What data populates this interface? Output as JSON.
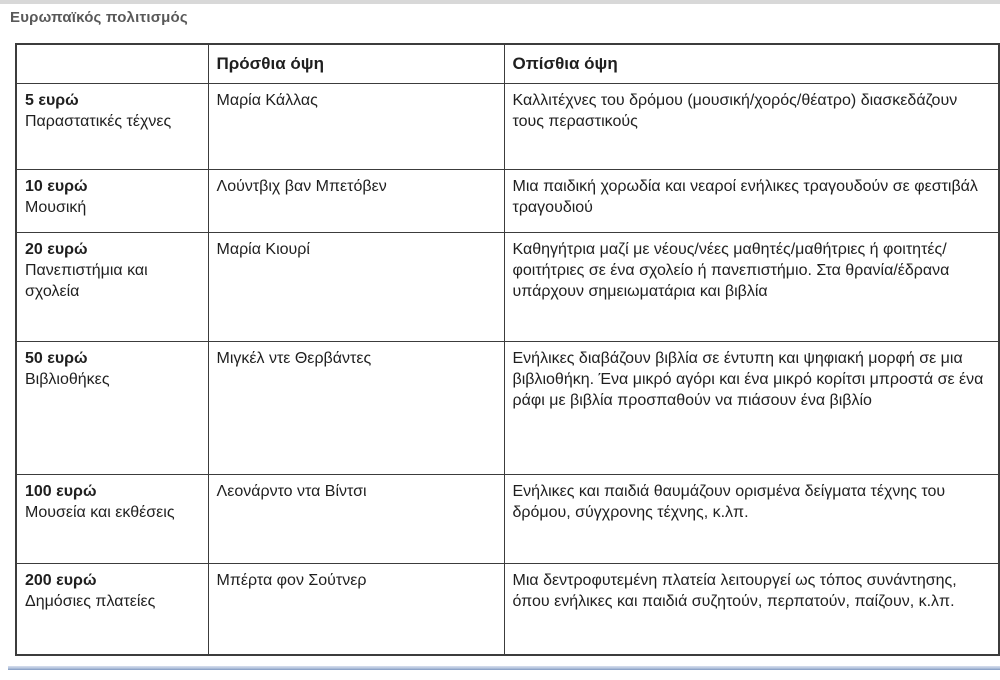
{
  "document": {
    "title": "Ευρωπαϊκός πολιτισμός"
  },
  "table": {
    "headers": {
      "row_label": "",
      "front": "Πρόσθια όψη",
      "back": "Οπίσθια όψη"
    },
    "rows": [
      {
        "denomination": "5 ευρώ",
        "category": "Παραστατικές τέχνες",
        "front": "Μαρία Κάλλας",
        "back": "Καλλιτέχνες του δρόμου (μουσική/χορός/θέατρο) διασκεδάζουν τους περαστικούς"
      },
      {
        "denomination": "10 ευρώ",
        "category": "Μουσική",
        "front": "Λούντβιχ βαν Μπετόβεν",
        "back": "Μια παιδική χορωδία και νεαροί ενήλικες τραγουδούν σε φεστιβάλ τραγουδιού"
      },
      {
        "denomination": "20 ευρώ",
        "category": "Πανεπιστήμια και σχολεία",
        "front": "Μαρία Κιουρί",
        "back": "Καθηγήτρια μαζί με νέους/νέες μαθητές/μαθήτριες ή φοιτητές/φοιτήτριες σε ένα σχολείο ή πανεπιστήμιο. Στα θρανία/έδρανα υπάρχουν σημειωματάρια και βιβλία"
      },
      {
        "denomination": "50 ευρώ",
        "category": "Βιβλιοθήκες",
        "front": "Μιγκέλ ντε Θερβάντες",
        "back": "Ενήλικες διαβάζουν βιβλία σε έντυπη και ψηφιακή μορφή σε μια βιβλιοθήκη. Ένα μικρό αγόρι και ένα μικρό κορίτσι μπροστά σε ένα ράφι με βιβλία προσπαθούν να πιάσουν ένα βιβλίο"
      },
      {
        "denomination": "100 ευρώ",
        "category": "Μουσεία και εκθέσεις",
        "front": "Λεονάρντο ντα Βίντσι",
        "back": "Ενήλικες και παιδιά θαυμάζουν ορισμένα δείγματα τέχνης του δρόμου, σύγχρονης τέχνης, κ.λπ."
      },
      {
        "denomination": "200 ευρώ",
        "category": "Δημόσιες πλατείες",
        "front": "Μπέρτα φον Σούτνερ",
        "back": "Μια δεντροφυτεμένη πλατεία λειτουργεί ως τόπος συνάντησης, όπου ενήλικες και παιδιά συζητούν, περπατούν, παίζουν, κ.λπ."
      }
    ]
  },
  "colors": {
    "table_border": "#3c3c3c",
    "title_text": "#595959",
    "body_text": "#1f1f1f",
    "top_bar": "#d8d8d8",
    "bottom_rule_light": "#d7dfee",
    "bottom_rule_dark": "#8099c2"
  }
}
